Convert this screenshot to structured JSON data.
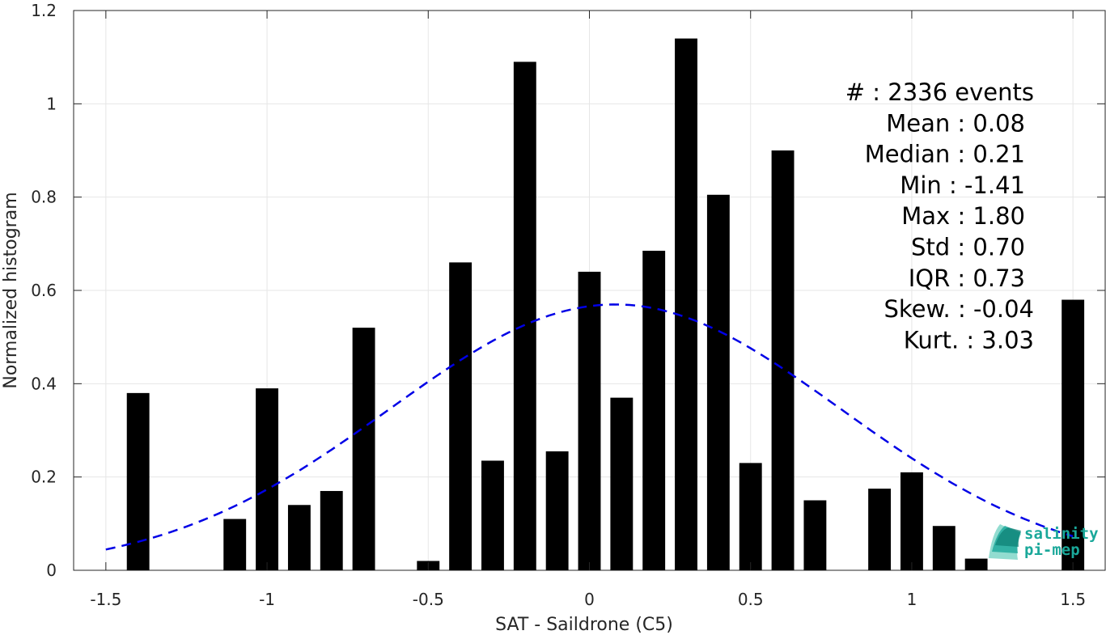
{
  "chart_data": {
    "type": "bar",
    "xlabel": "SAT - Saildrone (C5)",
    "ylabel": "Normalized histogram",
    "xlim": [
      -1.6,
      1.6
    ],
    "ylim": [
      0,
      1.2
    ],
    "xticks": [
      -1.5,
      -1,
      -0.5,
      0,
      0.5,
      1,
      1.5
    ],
    "xtick_labels": [
      "-1.5",
      "-1",
      "-0.5",
      "0",
      "0.5",
      "1",
      "1.5"
    ],
    "yticks": [
      0,
      0.2,
      0.4,
      0.6,
      0.8,
      1,
      1.2
    ],
    "ytick_labels": [
      "0",
      "0.2",
      "0.4",
      "0.6",
      "0.8",
      "1",
      "1.2"
    ],
    "grid": true,
    "bar_width": 0.07,
    "x": [
      -1.4,
      -1.1,
      -1.0,
      -0.9,
      -0.8,
      -0.7,
      -0.5,
      -0.4,
      -0.3,
      -0.2,
      -0.1,
      0.0,
      0.1,
      0.2,
      0.3,
      0.4,
      0.5,
      0.6,
      0.7,
      0.9,
      1.0,
      1.1,
      1.2,
      1.5
    ],
    "values": [
      0.38,
      0.11,
      0.39,
      0.14,
      0.17,
      0.52,
      0.02,
      0.66,
      0.235,
      1.09,
      0.255,
      0.64,
      0.37,
      0.685,
      1.14,
      0.805,
      0.23,
      0.9,
      0.15,
      0.175,
      0.21,
      0.095,
      0.025,
      0.58
    ],
    "bar_color": "#000000",
    "fit": {
      "mean": 0.08,
      "std": 0.7,
      "x_range": [
        -1.5,
        1.5
      ],
      "style": "dashed",
      "color": "#0000e6"
    },
    "stats": [
      "#  : 2336 events",
      "Mean : 0.08",
      "Median : 0.21",
      "Min : -1.41",
      "Max : 1.80",
      "Std : 0.70",
      "IQR : 0.73",
      "Skew. : -0.04",
      "Kurt. : 3.03"
    ],
    "logo": {
      "line1": "salinity",
      "line2": "pi-mep",
      "color": "#1aa89a"
    }
  }
}
